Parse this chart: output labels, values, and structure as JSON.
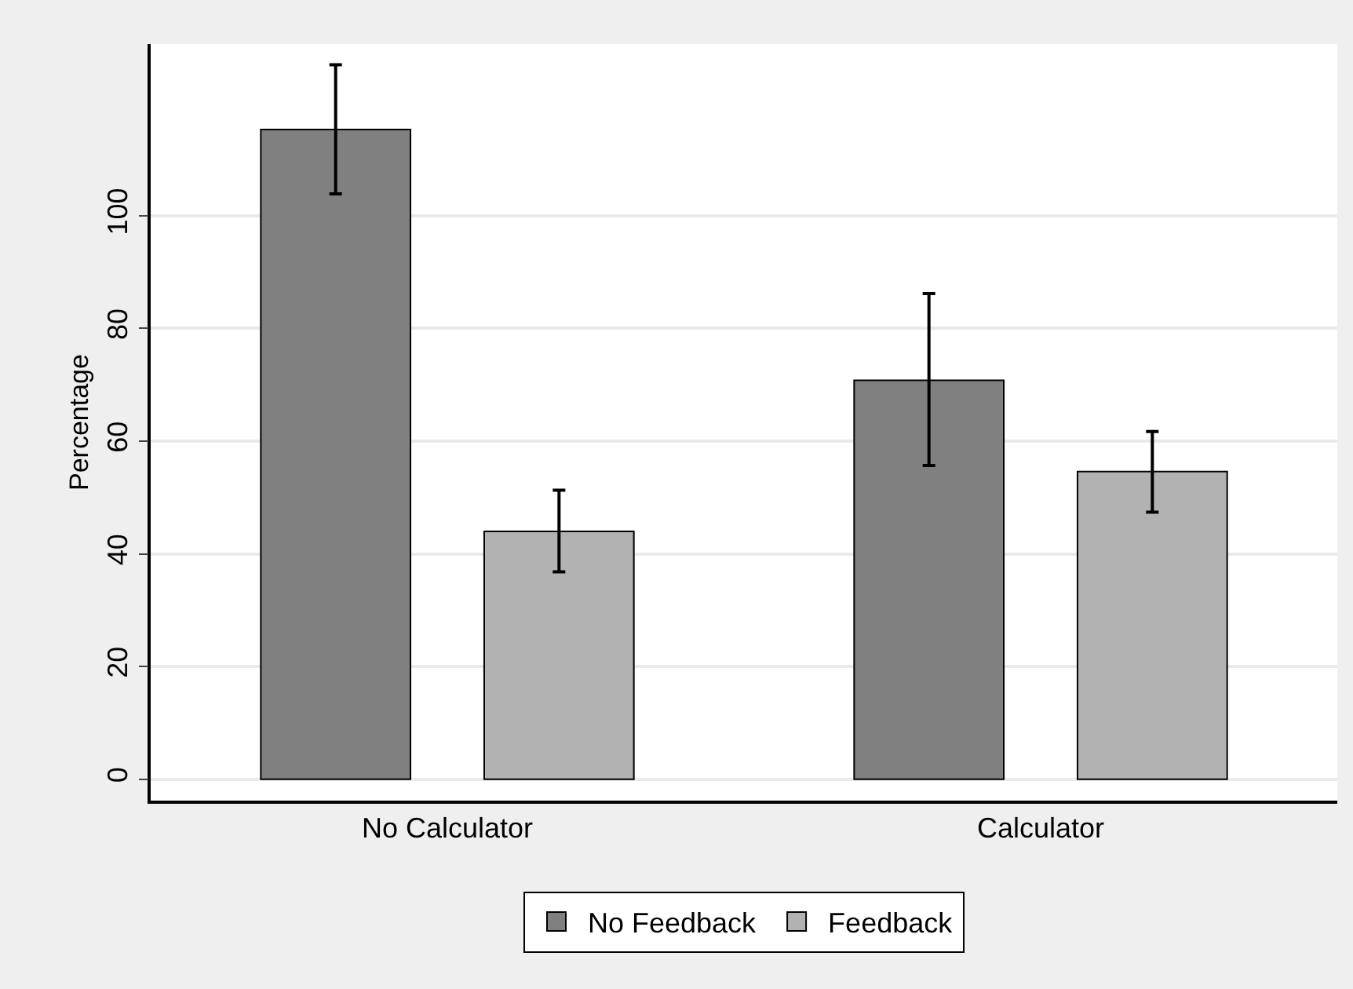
{
  "chart_data": {
    "type": "bar",
    "ylabel": "Percentage",
    "categories": [
      "No Calculator",
      "Calculator"
    ],
    "series": [
      {
        "name": "No Feedback",
        "color": "#808080",
        "values": [
          115.3,
          70.8
        ],
        "errors": [
          [
            103.9,
            126.8
          ],
          [
            55.7,
            86.2
          ]
        ]
      },
      {
        "name": "Feedback",
        "color": "#b2b2b2",
        "values": [
          44.0,
          54.6
        ],
        "errors": [
          [
            36.8,
            51.3
          ],
          [
            47.4,
            61.7
          ]
        ]
      }
    ],
    "ylim": [
      -3.8,
      130.5
    ],
    "yticks": [
      0,
      20,
      40,
      60,
      80,
      100
    ],
    "grid": "y",
    "legend": "bottom"
  }
}
